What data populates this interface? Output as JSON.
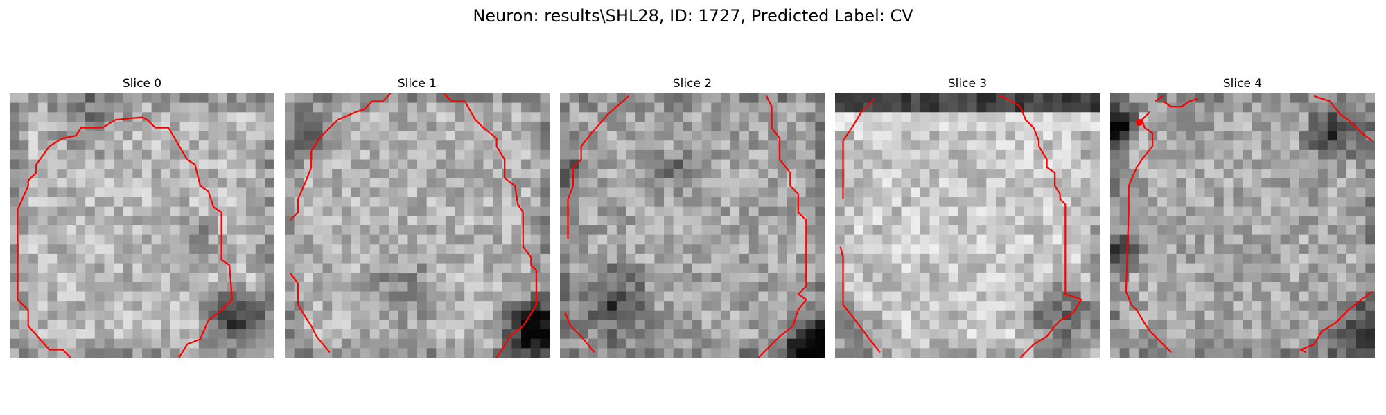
{
  "figure": {
    "title": "Neuron: results\\SHL28, ID: 1727, Predicted Label: CV"
  },
  "panels": [
    {
      "title": "Slice 0",
      "image": "grayscale-neuron-patch",
      "overlay": "red-contour"
    },
    {
      "title": "Slice 1",
      "image": "grayscale-neuron-patch",
      "overlay": "red-contour"
    },
    {
      "title": "Slice 2",
      "image": "grayscale-neuron-patch",
      "overlay": "red-contour"
    },
    {
      "title": "Slice 3",
      "image": "grayscale-neuron-patch",
      "overlay": "red-contour"
    },
    {
      "title": "Slice 4",
      "image": "grayscale-neuron-patch",
      "overlay": "red-contour"
    }
  ],
  "colors": {
    "contour": "#ff0000",
    "background": "#ffffff"
  }
}
